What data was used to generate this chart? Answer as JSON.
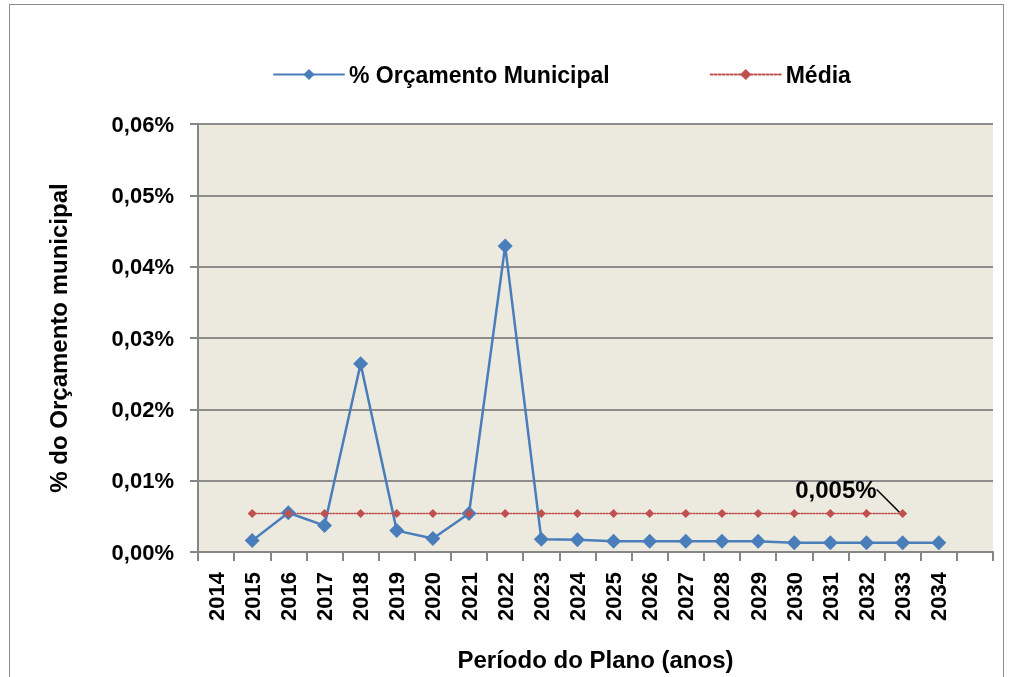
{
  "chart_data": {
    "type": "line",
    "xlabel": "Período do Plano (anos)",
    "ylabel": "% do Orçamento municipal",
    "categories": [
      "2014",
      "2015",
      "2016",
      "2017",
      "2018",
      "2019",
      "2020",
      "2021",
      "2022",
      "2023",
      "2024",
      "2025",
      "2026",
      "2027",
      "2028",
      "2029",
      "2030",
      "2031",
      "2032",
      "2033",
      "2034",
      null
    ],
    "series": [
      {
        "name": "% Orçamento Municipal",
        "color": "#4a7ebb",
        "marker": "diamond",
        "line_style": "solid",
        "values": [
          null,
          0.0016,
          0.0055,
          0.0037,
          0.0264,
          0.003,
          0.0019,
          0.0054,
          0.0429,
          0.0018,
          0.0017,
          0.0015,
          0.0015,
          0.0015,
          0.0015,
          0.0015,
          0.0013,
          0.0013,
          0.0013,
          0.0013,
          0.0013,
          null
        ]
      },
      {
        "name": "Média",
        "color": "#c0504d",
        "marker": "diamond",
        "line_style": "dotted",
        "values": [
          null,
          0.0054,
          0.0054,
          0.0054,
          0.0054,
          0.0054,
          0.0054,
          0.0054,
          0.0054,
          0.0054,
          0.0054,
          0.0054,
          0.0054,
          0.0054,
          0.0054,
          0.0054,
          0.0054,
          0.0054,
          0.0054,
          0.0054,
          null,
          null
        ]
      }
    ],
    "ylim": [
      0,
      0.06
    ],
    "yticks": [
      {
        "value": 0,
        "label": "0,00%"
      },
      {
        "value": 0.01,
        "label": "0,01%"
      },
      {
        "value": 0.02,
        "label": "0,02%"
      },
      {
        "value": 0.03,
        "label": "0,03%"
      },
      {
        "value": 0.04,
        "label": "0,04%"
      },
      {
        "value": 0.05,
        "label": "0,05%"
      },
      {
        "value": 0.06,
        "label": "0,06%"
      }
    ],
    "grid": "y",
    "legend": "top",
    "annotations": [
      {
        "text": "0,005%",
        "x": "2033",
        "y": 0.0054
      }
    ]
  }
}
